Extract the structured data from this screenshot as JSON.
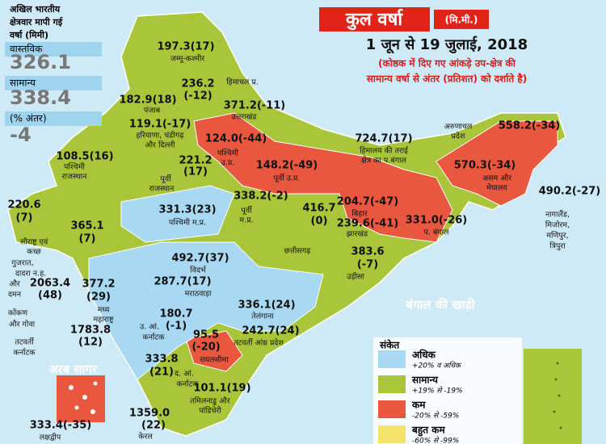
{
  "summary": {
    "heading": [
      "अखिल भारतीय",
      "क्षेत्रवार मापी गई",
      "वर्षा (मिमी)"
    ],
    "actual_label": "वास्तविक",
    "actual": "326.1",
    "normal_label": "सामान्य",
    "normal": "338.4",
    "diff_label": "(% अंतर)",
    "diff": "-4"
  },
  "header": {
    "title": "कुल वर्षा",
    "unit": "(मि.मी.)",
    "period": "1 जून से 19 जुलाई, 2018",
    "note": [
      "(कोष्ठक में दिए गए आंकड़े उप-क्षेत्र की",
      "सामान्य वर्षा से अंतर (प्रतिशत) को दर्शाते है)"
    ]
  },
  "regions": [
    {
      "value": [
        "197.3(17)"
      ],
      "name": [
        "जम्मू-कश्मीर"
      ]
    },
    {
      "value": [
        "236.2",
        "(-12)"
      ],
      "name": [
        "हिमाचल प्र."
      ]
    },
    {
      "value": [
        "182.9(18)"
      ],
      "name": [
        "पंजाब"
      ]
    },
    {
      "value": [
        "371.2(-11)"
      ],
      "name": [
        "उत्तराखंड"
      ]
    },
    {
      "value": [
        "119.1(-17)"
      ],
      "name": [
        "हरियाणा, चंडीगढ़",
        "और दिल्ली"
      ]
    },
    {
      "value": [
        "124.0(-44)"
      ],
      "name": [
        "पश्चिमी",
        "उ.प्र."
      ]
    },
    {
      "value": [
        "108.5(16)"
      ],
      "name": [
        "पश्चिमी",
        "राजस्थान"
      ]
    },
    {
      "value": [
        "221.2",
        "(17)"
      ],
      "name": [
        "पूर्वी",
        "राजस्थान"
      ]
    },
    {
      "value": [
        "148.2(-49)"
      ],
      "name": [
        "पूर्वी उ.प्र."
      ]
    },
    {
      "value": [
        "724.7(17)"
      ],
      "name": [
        "हिमालय की तराई",
        "क्षेत्र का प.बंगाल"
      ]
    },
    {
      "value": [
        "204.7(-47)"
      ],
      "name": [
        "बिहार"
      ]
    },
    {
      "value": [
        "558.2(-34)"
      ],
      "name": [
        "अरुणाचल",
        "प्रदेश"
      ]
    },
    {
      "value": [
        "570.3(-34)"
      ],
      "name": [
        "असम और",
        "मेघालय"
      ]
    },
    {
      "value": [
        "490.2(-27)"
      ],
      "name": [
        "नागालैंड,",
        "मिजोरम,",
        "मणिपुर,",
        "त्रिपुरा"
      ]
    },
    {
      "value": [
        "220.6",
        "(7)"
      ],
      "name": [
        "सौराष्ट्र एवं",
        "कच्छ"
      ]
    },
    {
      "value": [
        "365.1",
        "(7)"
      ]
    },
    {
      "value": [
        "331.3(23)"
      ],
      "name": [
        "पश्चिमी म.प्र."
      ]
    },
    {
      "value": [
        "338.2(-2)"
      ],
      "name": [
        "पूर्वी",
        "म.प्र."
      ]
    },
    {
      "value": [
        "416.7",
        "(0)"
      ],
      "name": [
        "छत्तीसगढ़"
      ]
    },
    {
      "value": [
        "239.6(-41)"
      ],
      "name": [
        "झारखंड"
      ]
    },
    {
      "value": [
        "331.0(-26)"
      ],
      "name": [
        "प. बंगाल"
      ]
    },
    {
      "value": [
        "383.6",
        "(-7)"
      ],
      "name": [
        "उड़ीसा"
      ]
    },
    {
      "value": [
        "492.7(37)"
      ],
      "name": [
        "विदर्भ"
      ]
    },
    {
      "name": [
        "गुजरात,",
        "दादरा न.ह.",
        "और",
        "दमन"
      ]
    },
    {
      "value": [
        "2063.4",
        "(48)"
      ]
    },
    {
      "value": [
        "377.2",
        "(29)"
      ],
      "name": [
        "मध्य",
        "महाराष्ट्र"
      ]
    },
    {
      "value": [
        "287.7(17)"
      ],
      "name": [
        "मराठवाड़ा"
      ]
    },
    {
      "name": [
        "कोंकण",
        "और गोवा"
      ]
    },
    {
      "value": [
        "180.7",
        "(-1)"
      ],
      "name": [
        "उ. आं.",
        "कर्नाटक"
      ]
    },
    {
      "value": [
        "336.1(24)"
      ],
      "name": [
        "तेलंगाना"
      ]
    },
    {
      "name": [
        "तटवर्ती",
        "कर्नाटक"
      ]
    },
    {
      "value": [
        "1783.8",
        "(12)"
      ]
    },
    {
      "value": [
        "242.7(24)"
      ],
      "name": [
        "तटवर्ती आंध्र प्रदेश"
      ]
    },
    {
      "value": [
        "95.5",
        "(-20)"
      ],
      "name": [
        "रायलसीमा"
      ]
    },
    {
      "value": [
        "333.8",
        "(21)"
      ],
      "name": [
        "द. आं.",
        "कर्नाटक"
      ]
    },
    {
      "value": [
        "101.1(19)"
      ],
      "name": [
        "तमिलनाडु और",
        "पांडिचेरी"
      ]
    },
    {
      "value": [
        "1359.0",
        "(22)"
      ],
      "name": [
        "केरल"
      ]
    },
    {
      "value": [
        "333.4(-35)"
      ],
      "name": [
        "लक्षद्वीप"
      ]
    }
  ],
  "seas": [
    "अरब सागर",
    "बंगाल की खाड़ी"
  ],
  "legend": {
    "title": "संकेत",
    "items": [
      {
        "label": "अधिक",
        "range": "+20% व अधिक",
        "color": "#a9d9f2"
      },
      {
        "label": "सामान्य",
        "range": "+19% से -19%",
        "color": "#a9c63a"
      },
      {
        "label": "कम",
        "range": "-20% से -59%",
        "color": "#e9573f"
      },
      {
        "label": "बहुत कम",
        "range": "-60% से -99%",
        "color": "#f3e36a"
      }
    ]
  }
}
